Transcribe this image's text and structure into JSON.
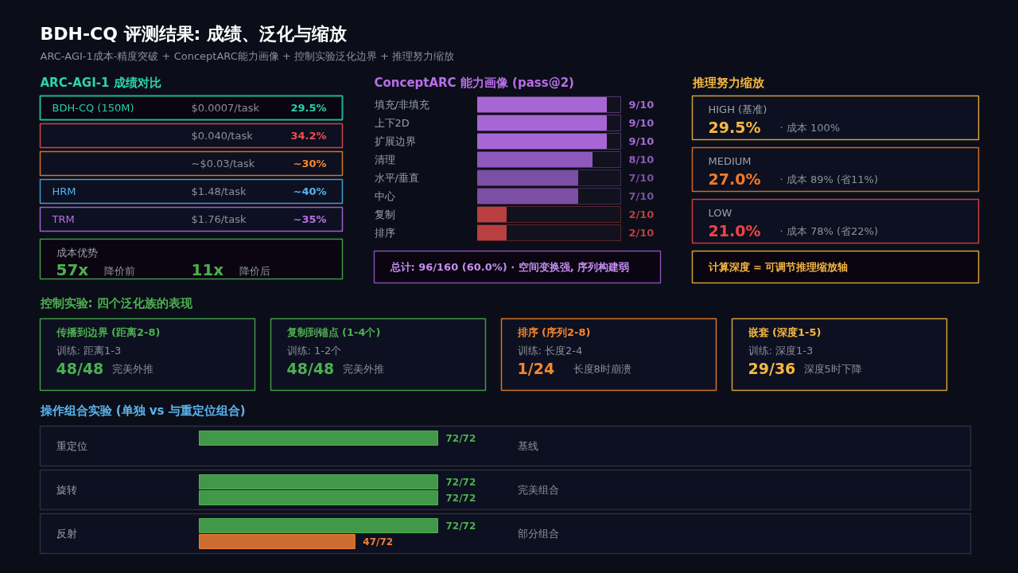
{
  "chart_data": [
    {
      "type": "other",
      "title": "BDH-CQ 评测结果: 成绩、泛化与缩放",
      "subtitle": "ARC-AGI-1成本-精度突破 + ConceptARC能力画像 + 控制实验泛化边界 + 推理努力缩放"
    },
    {
      "type": "other",
      "title": "ARC-AGI-1 成绩对比",
      "categories": [
        "BDH-CQ (150M)",
        null,
        null,
        "HRM",
        "TRM"
      ],
      "value_labels": [
        "29.5%",
        "34.2%",
        "~30%",
        "~40%",
        "~35%"
      ],
      "colors": [
        "#22d3aa",
        "#ef4f4f",
        "#f5862e",
        "#55b2ec",
        "#b86ee8"
      ],
      "annotations": [
        "$0.0007/task",
        "$0.040/task",
        "~$0.03/task",
        "$1.48/task",
        "$1.76/task"
      ]
    },
    {
      "type": "other",
      "title": "成本优势",
      "categories": [
        "降价前",
        "降价后"
      ],
      "value_labels": [
        "57x",
        "11x"
      ],
      "color": "#4caf50"
    },
    {
      "type": "bar",
      "orientation": "horizontal",
      "title": "ConceptARC 能力画像 (pass@2)",
      "categories": [
        "填充/非填充",
        "上下2D",
        "扩展边界",
        "清理",
        "水平/垂直",
        "中心",
        "复制",
        "排序"
      ],
      "values": [
        0.9,
        0.9,
        0.9,
        0.8,
        0.7,
        0.7,
        0.2,
        0.2
      ],
      "colors": [
        "#a866d4",
        "#a866d4",
        "#a866d4",
        "#9058bc",
        "#7b4fa3",
        "#7b4fa3",
        "#ba3f40",
        "#ba3f40"
      ],
      "value_labels": [
        "9/10",
        "9/10",
        "9/10",
        "8/10",
        "7/10",
        "7/10",
        "2/10",
        "2/10"
      ],
      "xlim": [
        0,
        1
      ],
      "tick_labels": "y",
      "annotations": [
        "总计: 96/160 (60.0%) · 空间变换强, 序列构建弱"
      ]
    },
    {
      "type": "other",
      "title": "推理努力缩放",
      "categories": [
        "HIGH (基准)",
        "MEDIUM",
        "LOW"
      ],
      "value_labels": [
        "29.5%",
        "27.0%",
        "21.0%"
      ],
      "colors": [
        "#f5b841",
        "#f07a2a",
        "#ef4444"
      ],
      "annotations": [
        "· 成本 100%",
        "· 成本 89% (省11%)",
        "· 成本 78% (省22%)",
        "计算深度 = 可调节推理缩放轴"
      ]
    },
    {
      "type": "other",
      "title": "控制实验: 四个泛化族的表现",
      "categories": [
        "传播到边界 (距离2-8)",
        "复制到锚点 (1-4个)",
        "排序 (序列2-8)",
        "嵌套 (深度1-5)"
      ],
      "colors": [
        "#4caf50",
        "#4caf50",
        "#f5862e",
        "#f5b841"
      ],
      "annotations": [
        "训练: 距离1-3",
        "48/48",
        "完美外推",
        "训练: 1-2个",
        "48/48",
        "完美外推",
        "训练: 长度2-4",
        "1/24",
        "长度8时崩溃",
        "训练: 深度1-3",
        "29/36",
        "深度5时下降"
      ]
    },
    {
      "type": "bar",
      "orientation": "horizontal",
      "title": "操作组合实验 (单独 vs 与重定位组合)",
      "categories": [
        "重定位",
        "旋转",
        "反射"
      ],
      "xlim": [
        0,
        72
      ],
      "tick_labels": "y",
      "series": [
        {
          "color": "#4caf50",
          "values": [
            72,
            72,
            72
          ],
          "value_labels": [
            "72/72",
            "72/72",
            "72/72"
          ]
        },
        {
          "colors": [
            "#4caf50",
            "#4caf50",
            "#ef7d35"
          ],
          "values": [
            null,
            72,
            47
          ],
          "value_labels": [
            null,
            "72/72",
            "47/72"
          ]
        }
      ],
      "annotations": [
        "基线",
        "完美组合",
        "部分组合"
      ]
    }
  ]
}
